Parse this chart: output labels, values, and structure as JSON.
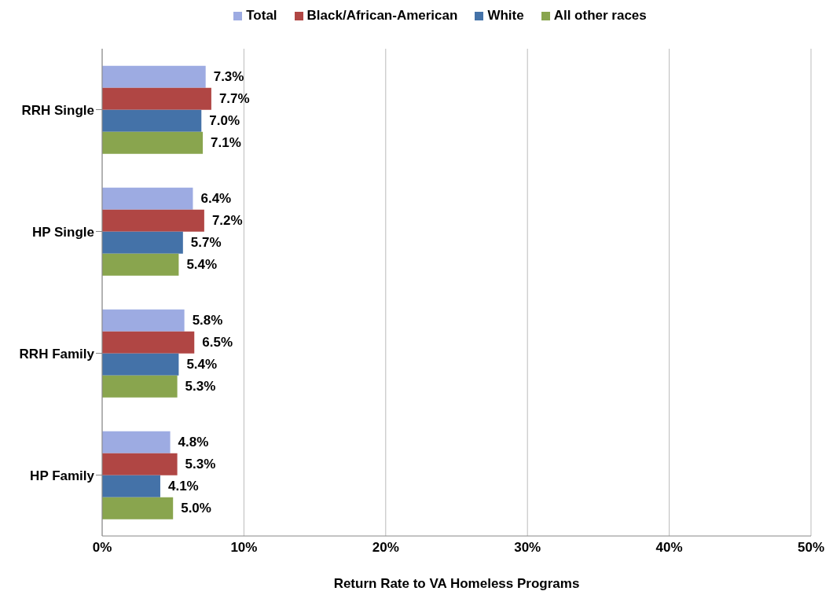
{
  "chart_data": {
    "type": "bar",
    "orientation": "horizontal",
    "xlabel": "Return Rate to VA Homeless Programs",
    "categories": [
      "RRH Single",
      "HP Single",
      "RRH Family",
      "HP Family"
    ],
    "series": [
      {
        "name": "Total",
        "color": "#9dabe2",
        "values": [
          7.3,
          6.4,
          5.8,
          4.8
        ],
        "value_labels": [
          "7.3%",
          "6.4%",
          "5.8%",
          "4.8%"
        ]
      },
      {
        "name": "Black/African-American",
        "color": "#b04644",
        "values": [
          7.7,
          7.2,
          6.5,
          5.3
        ],
        "value_labels": [
          "7.7%",
          "7.2%",
          "6.5%",
          "5.3%"
        ]
      },
      {
        "name": "White",
        "color": "#4472a8",
        "values": [
          7.0,
          5.7,
          5.4,
          4.1
        ],
        "value_labels": [
          "7.0%",
          "5.7%",
          "5.4%",
          "4.1%"
        ]
      },
      {
        "name": "All other races",
        "color": "#89a54e",
        "values": [
          7.1,
          5.4,
          5.3,
          5.0
        ],
        "value_labels": [
          "7.1%",
          "5.4%",
          "5.3%",
          "5.0%"
        ]
      }
    ],
    "xlim": [
      0,
      50
    ],
    "xticks": [
      {
        "value": 0,
        "label": "0%"
      },
      {
        "value": 10,
        "label": "10%"
      },
      {
        "value": 20,
        "label": "20%"
      },
      {
        "value": 30,
        "label": "30%"
      },
      {
        "value": 40,
        "label": "40%"
      },
      {
        "value": 50,
        "label": "50%"
      }
    ],
    "grid": "x",
    "legend": "top"
  }
}
